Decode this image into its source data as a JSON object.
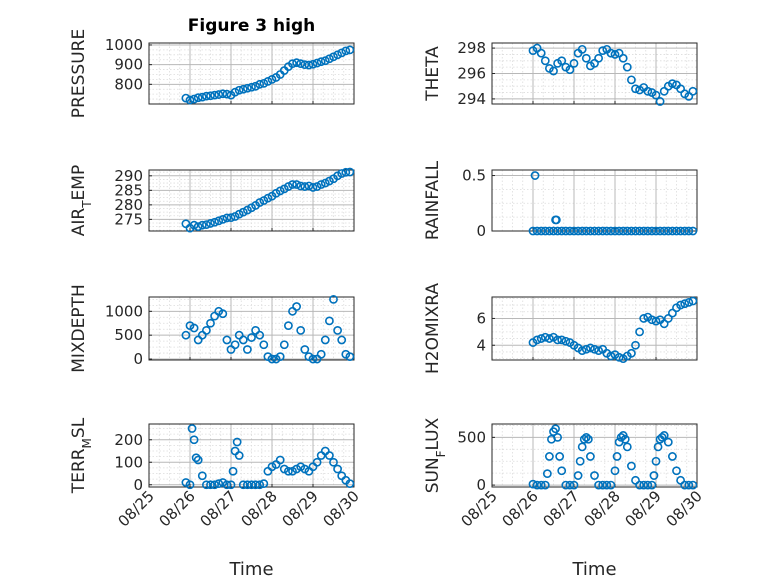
{
  "figure": {
    "title": "Figure 3 high",
    "xlabel": "Time",
    "x_tick_labels": [
      "08/25",
      "08/26",
      "08/27",
      "08/28",
      "08/29",
      "08/30"
    ],
    "marker_color": "#0072BD"
  },
  "chart_data": [
    {
      "type": "scatter",
      "id": "pressure",
      "title": "Figure 3 high",
      "ylabel": "PRESSURE",
      "ylim": [
        700,
        1010
      ],
      "yticks": [
        800,
        900,
        1000
      ],
      "xlim": [
        "08/25",
        "08/30"
      ],
      "xlabel": "",
      "grid": true,
      "x": [
        25.9,
        26.0,
        26.1,
        26.2,
        26.3,
        26.4,
        26.5,
        26.6,
        26.7,
        26.8,
        26.9,
        27.0,
        27.1,
        27.2,
        27.3,
        27.4,
        27.5,
        27.6,
        27.7,
        27.8,
        27.9,
        28.0,
        28.1,
        28.2,
        28.3,
        28.4,
        28.5,
        28.6,
        28.7,
        28.8,
        28.9,
        29.0,
        29.1,
        29.2,
        29.3,
        29.4,
        29.5,
        29.6,
        29.7,
        29.8,
        29.9
      ],
      "y": [
        730,
        720,
        725,
        732,
        735,
        740,
        742,
        745,
        748,
        752,
        750,
        745,
        760,
        770,
        775,
        780,
        785,
        790,
        800,
        805,
        815,
        825,
        835,
        850,
        870,
        890,
        905,
        910,
        905,
        900,
        898,
        902,
        908,
        915,
        920,
        930,
        940,
        950,
        960,
        970,
        975
      ]
    },
    {
      "type": "scatter",
      "id": "theta",
      "ylabel": "THETA",
      "ylim": [
        293.6,
        298.4
      ],
      "yticks": [
        294,
        296,
        298
      ],
      "xlim": [
        "08/25",
        "08/30"
      ],
      "xlabel": "",
      "grid": true,
      "x": [
        26.0,
        26.1,
        26.2,
        26.3,
        26.4,
        26.5,
        26.6,
        26.7,
        26.8,
        26.9,
        27.0,
        27.1,
        27.2,
        27.3,
        27.4,
        27.5,
        27.6,
        27.7,
        27.8,
        27.9,
        28.0,
        28.1,
        28.2,
        28.3,
        28.4,
        28.5,
        28.6,
        28.7,
        28.8,
        28.9,
        29.0,
        29.1,
        29.2,
        29.3,
        29.4,
        29.5,
        29.6,
        29.7,
        29.8,
        29.9
      ],
      "y": [
        297.8,
        298.0,
        297.6,
        297.0,
        296.4,
        296.2,
        296.8,
        297.0,
        296.5,
        296.3,
        296.8,
        297.6,
        297.9,
        297.2,
        296.6,
        296.8,
        297.2,
        297.8,
        297.9,
        297.6,
        297.5,
        297.6,
        297.2,
        296.5,
        295.5,
        294.8,
        294.7,
        294.9,
        294.6,
        294.5,
        294.3,
        293.8,
        294.6,
        295.0,
        295.2,
        295.1,
        294.8,
        294.4,
        294.2,
        294.6
      ]
    },
    {
      "type": "scatter",
      "id": "air_temp",
      "ylabel": "AIR_TEMP",
      "ylim": [
        271,
        292
      ],
      "yticks": [
        275,
        280,
        285,
        290
      ],
      "xlim": [
        "08/25",
        "08/30"
      ],
      "xlabel": "",
      "grid": true,
      "x": [
        25.9,
        26.0,
        26.1,
        26.2,
        26.3,
        26.4,
        26.5,
        26.6,
        26.7,
        26.8,
        26.9,
        27.0,
        27.1,
        27.2,
        27.3,
        27.4,
        27.5,
        27.6,
        27.7,
        27.8,
        27.9,
        28.0,
        28.1,
        28.2,
        28.3,
        28.4,
        28.5,
        28.6,
        28.7,
        28.8,
        28.9,
        29.0,
        29.1,
        29.2,
        29.3,
        29.4,
        29.5,
        29.6,
        29.7,
        29.8,
        29.9
      ],
      "y": [
        273.5,
        272.0,
        273.0,
        272.5,
        273.0,
        273.2,
        273.6,
        274.0,
        274.5,
        275.0,
        275.5,
        275.6,
        276.0,
        276.8,
        277.5,
        278.2,
        279.0,
        279.8,
        280.8,
        281.5,
        282.3,
        283.0,
        284.0,
        284.8,
        285.5,
        286.3,
        287.0,
        287.0,
        286.5,
        286.3,
        286.5,
        286.0,
        286.3,
        287.0,
        287.5,
        288.2,
        289.0,
        290.0,
        290.8,
        291.2,
        291.3
      ]
    },
    {
      "type": "scatter",
      "id": "rainfall",
      "ylabel": "RAINFALL",
      "ylim": [
        0,
        0.55
      ],
      "yticks": [
        0,
        0.5
      ],
      "xlim": [
        "08/25",
        "08/30"
      ],
      "xlabel": "",
      "grid": true,
      "x": [
        26.0,
        26.1,
        26.2,
        26.3,
        26.4,
        26.5,
        26.6,
        26.7,
        26.8,
        26.9,
        27.0,
        27.1,
        27.2,
        27.3,
        27.4,
        27.5,
        27.6,
        27.7,
        27.8,
        27.9,
        28.0,
        28.1,
        28.2,
        28.3,
        28.4,
        28.5,
        28.6,
        28.7,
        28.8,
        28.9,
        29.0,
        29.1,
        29.2,
        29.3,
        29.4,
        29.5,
        29.6,
        29.7,
        29.8,
        29.9,
        26.05,
        26.55,
        26.57
      ],
      "y": [
        0,
        0,
        0,
        0,
        0,
        0,
        0,
        0,
        0,
        0,
        0,
        0,
        0,
        0,
        0,
        0,
        0,
        0,
        0,
        0,
        0,
        0,
        0,
        0,
        0,
        0,
        0,
        0,
        0,
        0,
        0,
        0,
        0,
        0,
        0,
        0,
        0,
        0,
        0,
        0,
        0.5,
        0.1,
        0.1
      ]
    },
    {
      "type": "scatter",
      "id": "mixdepth",
      "ylabel": "MIXDEPTH",
      "ylim": [
        -20,
        1300
      ],
      "yticks": [
        0,
        500,
        1000
      ],
      "xlim": [
        "08/25",
        "08/30"
      ],
      "xlabel": "",
      "grid": true,
      "x": [
        25.9,
        26.0,
        26.1,
        26.2,
        26.3,
        26.4,
        26.5,
        26.6,
        26.7,
        26.8,
        26.9,
        27.0,
        27.1,
        27.2,
        27.3,
        27.4,
        27.5,
        27.6,
        27.7,
        27.8,
        27.9,
        28.0,
        28.1,
        28.2,
        28.3,
        28.4,
        28.5,
        28.6,
        28.7,
        28.8,
        28.9,
        29.0,
        29.1,
        29.2,
        29.3,
        29.4,
        29.5,
        29.6,
        29.7,
        29.8,
        29.9
      ],
      "y": [
        500,
        700,
        650,
        400,
        500,
        600,
        750,
        900,
        1000,
        950,
        400,
        200,
        300,
        500,
        400,
        200,
        450,
        600,
        500,
        300,
        50,
        0,
        0,
        50,
        300,
        700,
        1000,
        1100,
        600,
        200,
        50,
        0,
        0,
        100,
        400,
        800,
        1250,
        600,
        400,
        100,
        50
      ]
    },
    {
      "type": "scatter",
      "id": "h2omixra",
      "ylabel": "H2OMIXRA",
      "ylim": [
        2.9,
        7.6
      ],
      "yticks": [
        4,
        6
      ],
      "xlim": [
        "08/25",
        "08/30"
      ],
      "xlabel": "",
      "grid": true,
      "x": [
        26.0,
        26.1,
        26.2,
        26.3,
        26.4,
        26.5,
        26.6,
        26.7,
        26.8,
        26.9,
        27.0,
        27.1,
        27.2,
        27.3,
        27.4,
        27.5,
        27.6,
        27.7,
        27.8,
        27.9,
        28.0,
        28.1,
        28.2,
        28.3,
        28.4,
        28.5,
        28.6,
        28.7,
        28.8,
        28.9,
        29.0,
        29.1,
        29.2,
        29.3,
        29.4,
        29.5,
        29.6,
        29.7,
        29.8,
        29.9
      ],
      "y": [
        4.2,
        4.4,
        4.5,
        4.6,
        4.5,
        4.6,
        4.4,
        4.4,
        4.3,
        4.2,
        4.0,
        3.8,
        3.6,
        3.7,
        3.8,
        3.7,
        3.6,
        3.7,
        3.4,
        3.2,
        3.3,
        3.1,
        3.0,
        3.2,
        3.4,
        4.0,
        5.0,
        6.0,
        6.1,
        5.9,
        5.8,
        5.9,
        5.6,
        6.0,
        6.4,
        6.8,
        7.0,
        7.1,
        7.2,
        7.3
      ]
    },
    {
      "type": "scatter",
      "id": "terr_msl",
      "ylabel": "TERR_MSL",
      "ylim": [
        -10,
        270
      ],
      "yticks": [
        0,
        100,
        200
      ],
      "xlim": [
        "08/25",
        "08/30"
      ],
      "xlabel": "Time",
      "grid": true,
      "x": [
        25.9,
        26.0,
        26.05,
        26.1,
        26.15,
        26.2,
        26.3,
        26.4,
        26.5,
        26.6,
        26.7,
        26.8,
        26.9,
        27.0,
        27.05,
        27.1,
        27.15,
        27.2,
        27.3,
        27.4,
        27.5,
        27.6,
        27.7,
        27.8,
        27.9,
        28.0,
        28.1,
        28.2,
        28.3,
        28.4,
        28.5,
        28.6,
        28.7,
        28.8,
        28.9,
        29.0,
        29.1,
        29.2,
        29.3,
        29.4,
        29.5,
        29.6,
        29.7,
        29.8,
        29.9
      ],
      "y": [
        10,
        0,
        250,
        200,
        120,
        110,
        40,
        0,
        0,
        0,
        5,
        10,
        0,
        0,
        60,
        150,
        190,
        130,
        0,
        0,
        0,
        0,
        0,
        5,
        60,
        80,
        90,
        110,
        70,
        60,
        60,
        70,
        80,
        70,
        60,
        80,
        100,
        130,
        150,
        130,
        100,
        70,
        40,
        20,
        5
      ]
    },
    {
      "type": "scatter",
      "id": "sun_flux",
      "ylabel": "SUN_FLUX",
      "ylim": [
        -20,
        640
      ],
      "yticks": [
        0,
        500
      ],
      "xlim": [
        "08/25",
        "08/30"
      ],
      "xlabel": "Time",
      "grid": true,
      "x": [
        26.0,
        26.1,
        26.2,
        26.3,
        26.35,
        26.4,
        26.45,
        26.5,
        26.55,
        26.6,
        26.65,
        26.7,
        26.8,
        26.9,
        27.0,
        27.1,
        27.15,
        27.2,
        27.25,
        27.3,
        27.35,
        27.4,
        27.5,
        27.6,
        27.7,
        27.8,
        27.9,
        28.0,
        28.05,
        28.1,
        28.15,
        28.2,
        28.25,
        28.3,
        28.4,
        28.5,
        28.6,
        28.7,
        28.8,
        28.9,
        28.95,
        29.0,
        29.05,
        29.1,
        29.15,
        29.2,
        29.3,
        29.4,
        29.5,
        29.6,
        29.7,
        29.8,
        29.9
      ],
      "y": [
        10,
        0,
        0,
        0,
        120,
        300,
        480,
        560,
        590,
        500,
        300,
        150,
        0,
        0,
        0,
        100,
        250,
        400,
        480,
        500,
        480,
        300,
        100,
        0,
        0,
        0,
        0,
        150,
        300,
        450,
        500,
        520,
        480,
        400,
        200,
        50,
        0,
        0,
        0,
        0,
        100,
        250,
        400,
        480,
        500,
        520,
        450,
        300,
        150,
        50,
        0,
        0,
        0
      ]
    }
  ]
}
